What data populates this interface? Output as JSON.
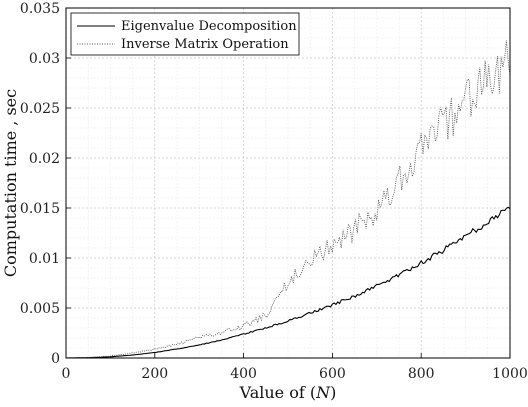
{
  "chart_data": {
    "type": "line",
    "title": "",
    "xlabel": "Value of (N)",
    "xlabel_prefix": "Value of (",
    "xlabel_var": "N",
    "xlabel_suffix": ")",
    "ylabel": "Computation time , sec",
    "xlim": [
      0,
      1000
    ],
    "ylim": [
      0,
      0.035
    ],
    "x_ticks": [
      0,
      200,
      400,
      600,
      800,
      1000
    ],
    "x_tick_labels": [
      "0",
      "200",
      "400",
      "600",
      "800",
      "1000"
    ],
    "y_ticks": [
      0,
      0.005,
      0.01,
      0.015,
      0.02,
      0.025,
      0.03,
      0.035
    ],
    "y_tick_labels": [
      "0",
      "0.005",
      "0.01",
      "0.015",
      "0.02",
      "0.025",
      "0.03",
      "0.035"
    ],
    "grid": true,
    "minor_grid": true,
    "legend_position": "top-left",
    "series": [
      {
        "name": "Eigenvalue Decomposition",
        "style": "solid",
        "color": "#000000",
        "x": [
          0,
          50,
          100,
          150,
          200,
          250,
          300,
          350,
          400,
          450,
          500,
          550,
          600,
          650,
          700,
          750,
          800,
          850,
          900,
          950,
          1000
        ],
        "values": [
          0,
          3e-05,
          0.00012,
          0.0003,
          0.00055,
          0.0009,
          0.0013,
          0.0018,
          0.0024,
          0.003,
          0.0037,
          0.0045,
          0.0053,
          0.0062,
          0.0072,
          0.0083,
          0.0095,
          0.0108,
          0.0122,
          0.0136,
          0.0151
        ]
      },
      {
        "name": "Inverse Matrix Operation",
        "style": "dotted",
        "color": "#555555",
        "x": [
          0,
          50,
          100,
          150,
          200,
          250,
          300,
          350,
          400,
          450,
          500,
          550,
          600,
          650,
          700,
          750,
          800,
          850,
          900,
          950,
          1000
        ],
        "values": [
          0,
          5e-05,
          0.0002,
          0.0005,
          0.0009,
          0.0014,
          0.002,
          0.0026,
          0.0032,
          0.0042,
          0.0075,
          0.0098,
          0.0112,
          0.0128,
          0.0148,
          0.0175,
          0.021,
          0.0235,
          0.0255,
          0.0275,
          0.03
        ]
      }
    ]
  }
}
